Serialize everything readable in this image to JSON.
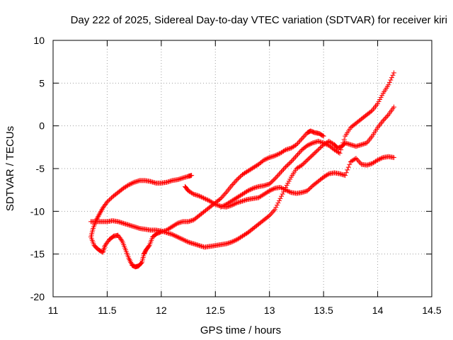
{
  "chart_data": {
    "type": "scatter",
    "title": "Day 222 of 2025, Sidereal Day-to-day VTEC variation (SDTVAR) for receiver kiri",
    "xlabel": "GPS time / hours",
    "ylabel": "SDTVAR / TECUs",
    "xlim": [
      11,
      14.5
    ],
    "ylim": [
      -20,
      10
    ],
    "xticks": [
      "11",
      "11.5",
      "12",
      "12.5",
      "13",
      "13.5",
      "14",
      "14.5"
    ],
    "yticks": [
      "10",
      "5",
      "0",
      "-5",
      "-10",
      "-15",
      "-20"
    ],
    "grid": true,
    "marker": "+",
    "color": "#ff0000",
    "series": [
      {
        "x": [
          11.35,
          11.37,
          11.4,
          11.43,
          11.46,
          11.5,
          11.55,
          11.6,
          11.65,
          11.7,
          11.75,
          11.8,
          11.85,
          11.9,
          11.95,
          12.0,
          12.05,
          12.1,
          12.15,
          12.2,
          12.25,
          12.28
        ],
        "y": [
          -13.0,
          -12.0,
          -11.0,
          -10.3,
          -9.6,
          -8.9,
          -8.3,
          -7.8,
          -7.3,
          -6.9,
          -6.6,
          -6.4,
          -6.4,
          -6.5,
          -6.7,
          -6.7,
          -6.6,
          -6.4,
          -6.3,
          -6.1,
          -5.9,
          -5.8
        ]
      },
      {
        "x": [
          11.35,
          11.38,
          11.42,
          11.46,
          11.48,
          11.52,
          11.56,
          11.6,
          11.64,
          11.67,
          11.7,
          11.73,
          11.76,
          11.79,
          11.82,
          11.84,
          11.86,
          11.89,
          11.92,
          11.96,
          12.0,
          12.05,
          12.1,
          12.15,
          12.2,
          12.25,
          12.3,
          12.35,
          12.4,
          12.45,
          12.5,
          12.55,
          12.6,
          12.65,
          12.7,
          12.75,
          12.8,
          12.85,
          12.9,
          12.95,
          13.0,
          13.05,
          13.1,
          13.15,
          13.2,
          13.25,
          13.3,
          13.35,
          13.38,
          13.42,
          13.46,
          13.5
        ],
        "y": [
          -13.0,
          -14.0,
          -14.5,
          -14.8,
          -14.0,
          -13.3,
          -12.9,
          -12.8,
          -13.5,
          -14.5,
          -15.5,
          -16.3,
          -16.5,
          -16.4,
          -16.0,
          -15.0,
          -14.5,
          -14.0,
          -13.0,
          -12.6,
          -12.4,
          -12.2,
          -11.8,
          -11.4,
          -11.2,
          -11.2,
          -11.0,
          -10.5,
          -10.0,
          -9.5,
          -9.0,
          -8.5,
          -7.8,
          -7.0,
          -6.3,
          -5.7,
          -5.3,
          -4.9,
          -4.5,
          -4.0,
          -3.7,
          -3.5,
          -3.2,
          -2.8,
          -2.6,
          -2.2,
          -1.5,
          -0.8,
          -0.6,
          -0.8,
          -0.9,
          -1.2
        ]
      },
      {
        "x": [
          11.35,
          11.4,
          11.45,
          11.5,
          11.55,
          11.6,
          11.65,
          11.7,
          11.75,
          11.8,
          11.85,
          11.9,
          11.95,
          12.0,
          12.05,
          12.1,
          12.15,
          12.2,
          12.25,
          12.3,
          12.35,
          12.4,
          12.45,
          12.5,
          12.55,
          12.6,
          12.65,
          12.7,
          12.75,
          12.8,
          12.85,
          12.9,
          12.95,
          13.0,
          13.05,
          13.1,
          13.15,
          13.2,
          13.25,
          13.3,
          13.35,
          13.4,
          13.45,
          13.5,
          13.55,
          13.6,
          13.63,
          13.67,
          13.7,
          13.75,
          13.8,
          13.85,
          13.9,
          13.95,
          14.0,
          14.05,
          14.1,
          14.15
        ],
        "y": [
          -11.2,
          -11.2,
          -11.2,
          -11.2,
          -11.1,
          -11.2,
          -11.4,
          -11.6,
          -11.8,
          -12.0,
          -12.1,
          -12.2,
          -12.2,
          -12.3,
          -12.5,
          -12.7,
          -13.0,
          -13.3,
          -13.6,
          -13.8,
          -14.0,
          -14.2,
          -14.1,
          -14.0,
          -13.9,
          -13.8,
          -13.6,
          -13.3,
          -12.9,
          -12.5,
          -12.0,
          -11.5,
          -11.0,
          -10.5,
          -9.8,
          -8.5,
          -7.2,
          -6.0,
          -5.0,
          -4.6,
          -4.0,
          -3.4,
          -2.8,
          -2.2,
          -1.8,
          -2.2,
          -2.6,
          -2.4,
          -2.0,
          -2.2,
          -2.4,
          -2.2,
          -2.0,
          -1.2,
          -0.2,
          0.6,
          1.3,
          2.2
        ]
      },
      {
        "x": [
          12.22,
          12.25,
          12.3,
          12.35,
          12.4,
          12.45,
          12.5,
          12.55,
          12.6,
          12.65,
          12.7,
          12.75,
          12.8,
          12.85,
          12.9,
          12.95,
          13.0,
          13.05,
          13.1,
          13.15,
          13.2,
          13.25,
          13.3,
          13.35,
          13.4,
          13.45,
          13.5,
          13.55,
          13.6,
          13.65,
          13.7,
          13.75,
          13.8,
          13.85,
          13.9,
          13.95,
          14.0,
          14.05,
          14.1,
          14.15
        ],
        "y": [
          -7.1,
          -7.6,
          -8.0,
          -8.2,
          -8.5,
          -8.8,
          -9.2,
          -9.4,
          -9.5,
          -9.3,
          -9.0,
          -8.8,
          -8.6,
          -8.5,
          -8.4,
          -8.0,
          -7.6,
          -7.3,
          -7.2,
          -7.5,
          -7.8,
          -7.9,
          -7.8,
          -7.6,
          -7.0,
          -6.5,
          -6.0,
          -5.6,
          -5.5,
          -5.6,
          -5.8,
          -4.2,
          -3.8,
          -4.5,
          -4.6,
          -4.4,
          -4.0,
          -3.7,
          -3.6,
          -3.7
        ]
      },
      {
        "x": [
          12.55,
          12.6,
          12.65,
          12.7,
          12.75,
          12.8,
          12.85,
          12.9,
          12.95,
          13.0,
          13.05,
          13.1,
          13.15,
          13.2,
          13.25,
          13.3,
          13.35,
          13.4,
          13.45,
          13.5,
          13.55,
          13.6,
          13.65,
          13.7,
          13.75,
          13.8,
          13.85,
          13.9,
          13.95,
          14.0,
          14.05,
          14.1,
          14.15
        ],
        "y": [
          -9.5,
          -9.2,
          -8.8,
          -8.4,
          -8.0,
          -7.6,
          -7.3,
          -7.1,
          -7.0,
          -6.8,
          -6.2,
          -5.5,
          -4.8,
          -4.2,
          -3.5,
          -2.8,
          -2.3,
          -2.0,
          -1.8,
          -2.0,
          -2.3,
          -2.8,
          -3.2,
          -1.2,
          -0.2,
          0.3,
          0.8,
          1.3,
          1.8,
          2.6,
          3.8,
          4.8,
          6.2
        ]
      }
    ]
  }
}
